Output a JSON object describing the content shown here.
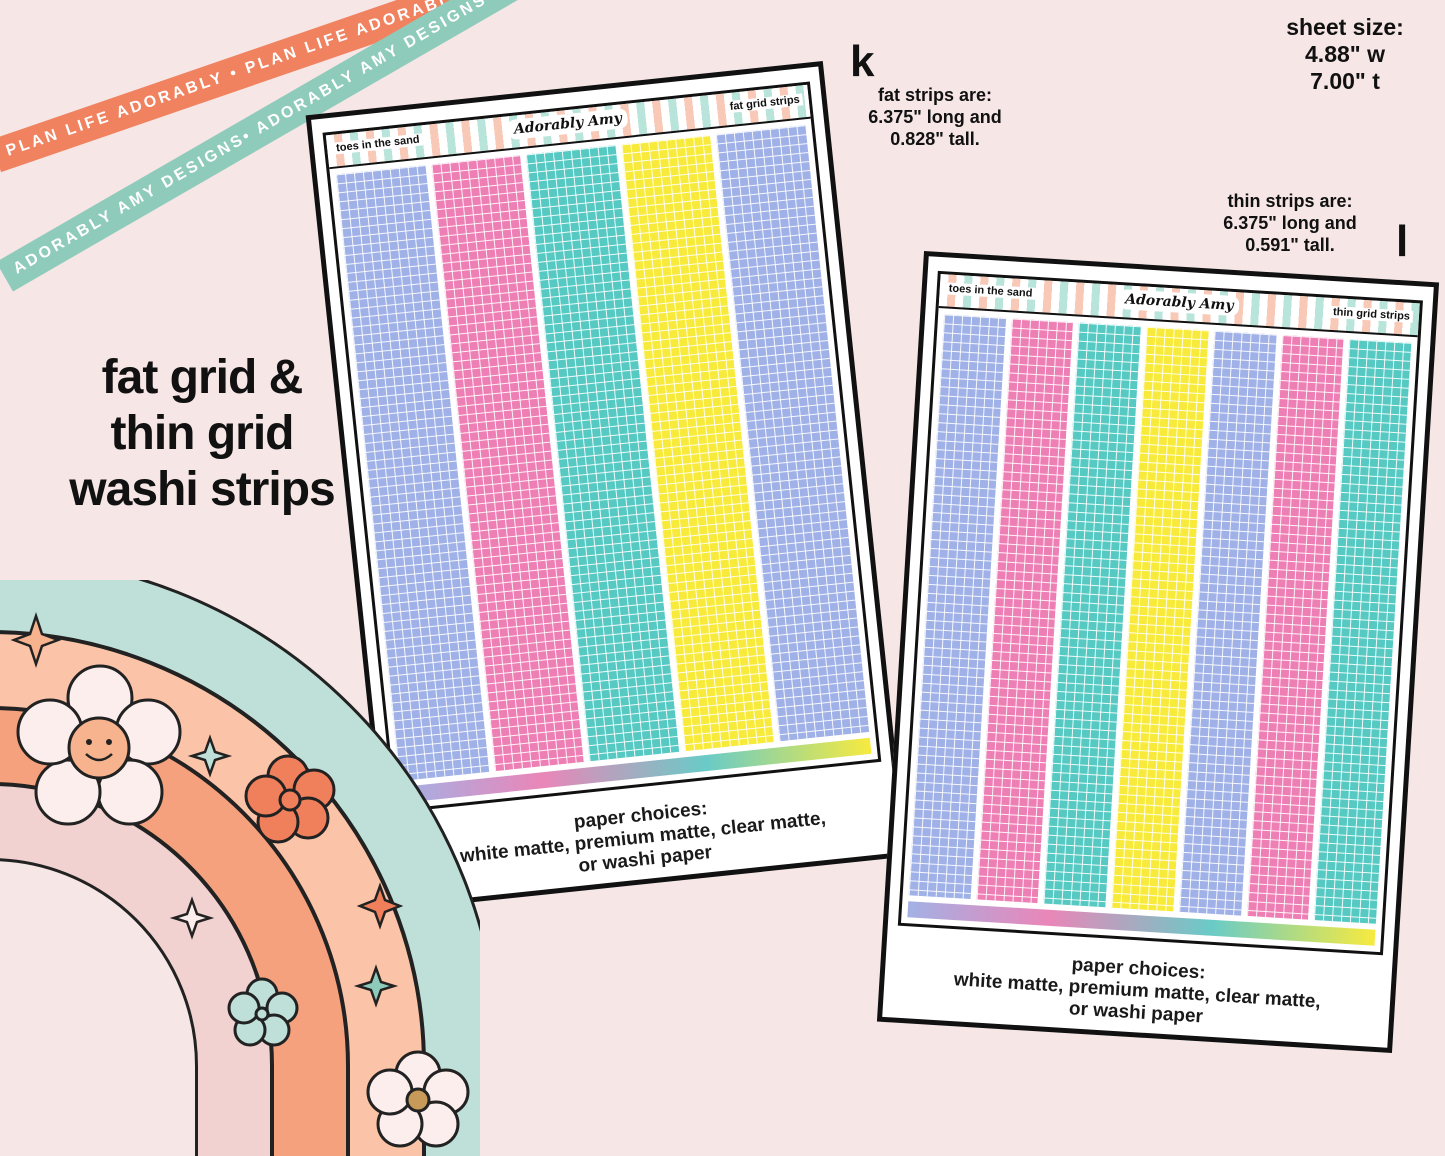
{
  "ribbons": {
    "top": "PLAN LIFE ADORABLY • PLAN LIFE ADORABLY • PLAN LIFE ADORABLY •",
    "second": "ADORABLY AMY DESIGNS• ADORABLY AMY DESIGNS• ADORABLY AMY DESIGNS•"
  },
  "title": {
    "line1": "fat grid &",
    "line2": "thin grid",
    "line3": "washi strips"
  },
  "sheet_size": {
    "label": "sheet size:",
    "width": "4.88\" w",
    "height": "7.00\" t"
  },
  "fat_info": {
    "letter": "k",
    "line1": "fat strips are:",
    "line2": "6.375\" long and",
    "line3": "0.828\" tall."
  },
  "thin_info": {
    "letter": "l",
    "line1": "thin strips are:",
    "line2": "6.375\" long and",
    "line3": "0.591\" tall."
  },
  "sheet_fat": {
    "header_left": "toes in the sand",
    "header_right": "fat grid strips",
    "logo": "Adorably Amy",
    "strip_colors": [
      "#9fb1e6",
      "#ee7fb5",
      "#56c9c3",
      "#f8ea3a",
      "#9fb1e6"
    ],
    "paper_line1": "paper choices:",
    "paper_line2": "white matte, premium matte, clear matte,",
    "paper_line3": "or washi paper"
  },
  "sheet_thin": {
    "header_left": "toes in the sand",
    "header_right": "thin grid strips",
    "logo": "Adorably Amy",
    "strip_colors": [
      "#9fb1e6",
      "#ee7fb5",
      "#56c9c3",
      "#f8ea3a",
      "#9fb1e6",
      "#ee7fb5",
      "#56c9c3"
    ],
    "paper_line1": "paper choices:",
    "paper_line2": "white matte, premium matte, clear matte,",
    "paper_line3": "or washi paper"
  },
  "colors": {
    "background": "#f6e6e6",
    "coral": "#f0825f",
    "mint": "#8ecbbb"
  }
}
